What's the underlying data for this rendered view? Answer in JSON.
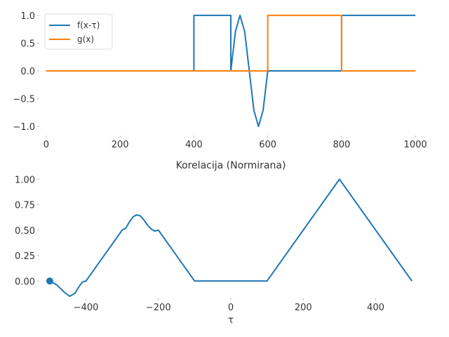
{
  "chart_data": [
    {
      "type": "line",
      "title": "",
      "xlabel": "",
      "ylabel": "",
      "xlim": [
        -15,
        1015
      ],
      "ylim": [
        -1.1,
        1.1
      ],
      "xticks": [
        "0",
        "200",
        "400",
        "600",
        "800",
        "1000"
      ],
      "yticks": [
        "1.0",
        "0.5",
        "0.0",
        "−0.5",
        "−1.0"
      ],
      "grid": false,
      "legend": "top-left",
      "series": [
        {
          "name": "f(x-τ)",
          "color": "#1f77b4",
          "x": [
            0,
            400,
            400,
            500,
            500,
            512.5,
            525,
            537.5,
            550,
            562.5,
            575,
            587.5,
            600,
            600,
            800,
            800,
            1000
          ],
          "y": [
            0,
            0,
            1,
            1,
            0,
            0.71,
            1,
            0.71,
            0,
            -0.71,
            -1,
            -0.71,
            0,
            0,
            0,
            1,
            1
          ]
        },
        {
          "name": "g(x)",
          "color": "#ff7f0e",
          "x": [
            0,
            600,
            600,
            800,
            800,
            1000
          ],
          "y": [
            0,
            0,
            1,
            1,
            0,
            0
          ]
        }
      ]
    },
    {
      "type": "line",
      "title": "Korelacija (Normirana)",
      "xlabel": "τ",
      "ylabel": "",
      "xlim": [
        -525,
        525
      ],
      "ylim": [
        -0.15,
        1.05
      ],
      "xticks": [
        "−400",
        "−200",
        "0",
        "200",
        "400"
      ],
      "yticks": [
        "1.00",
        "0.75",
        "0.50",
        "0.25",
        "0.00"
      ],
      "grid": false,
      "series": [
        {
          "name": "",
          "color": "#1f77b4",
          "x": [
            -500,
            -480,
            -460,
            -445,
            -430,
            -420,
            -410,
            -400,
            -300,
            -290,
            -280,
            -270,
            -260,
            -250,
            -240,
            -230,
            -220,
            -210,
            -200,
            -100,
            100,
            300,
            500
          ],
          "y": [
            0,
            -0.04,
            -0.11,
            -0.15,
            -0.12,
            -0.06,
            -0.01,
            0,
            0.5,
            0.52,
            0.58,
            0.63,
            0.65,
            0.64,
            0.6,
            0.55,
            0.51,
            0.49,
            0.5,
            0,
            0,
            1.0,
            0
          ]
        }
      ],
      "marker": {
        "x": -500,
        "y": 0
      }
    }
  ]
}
